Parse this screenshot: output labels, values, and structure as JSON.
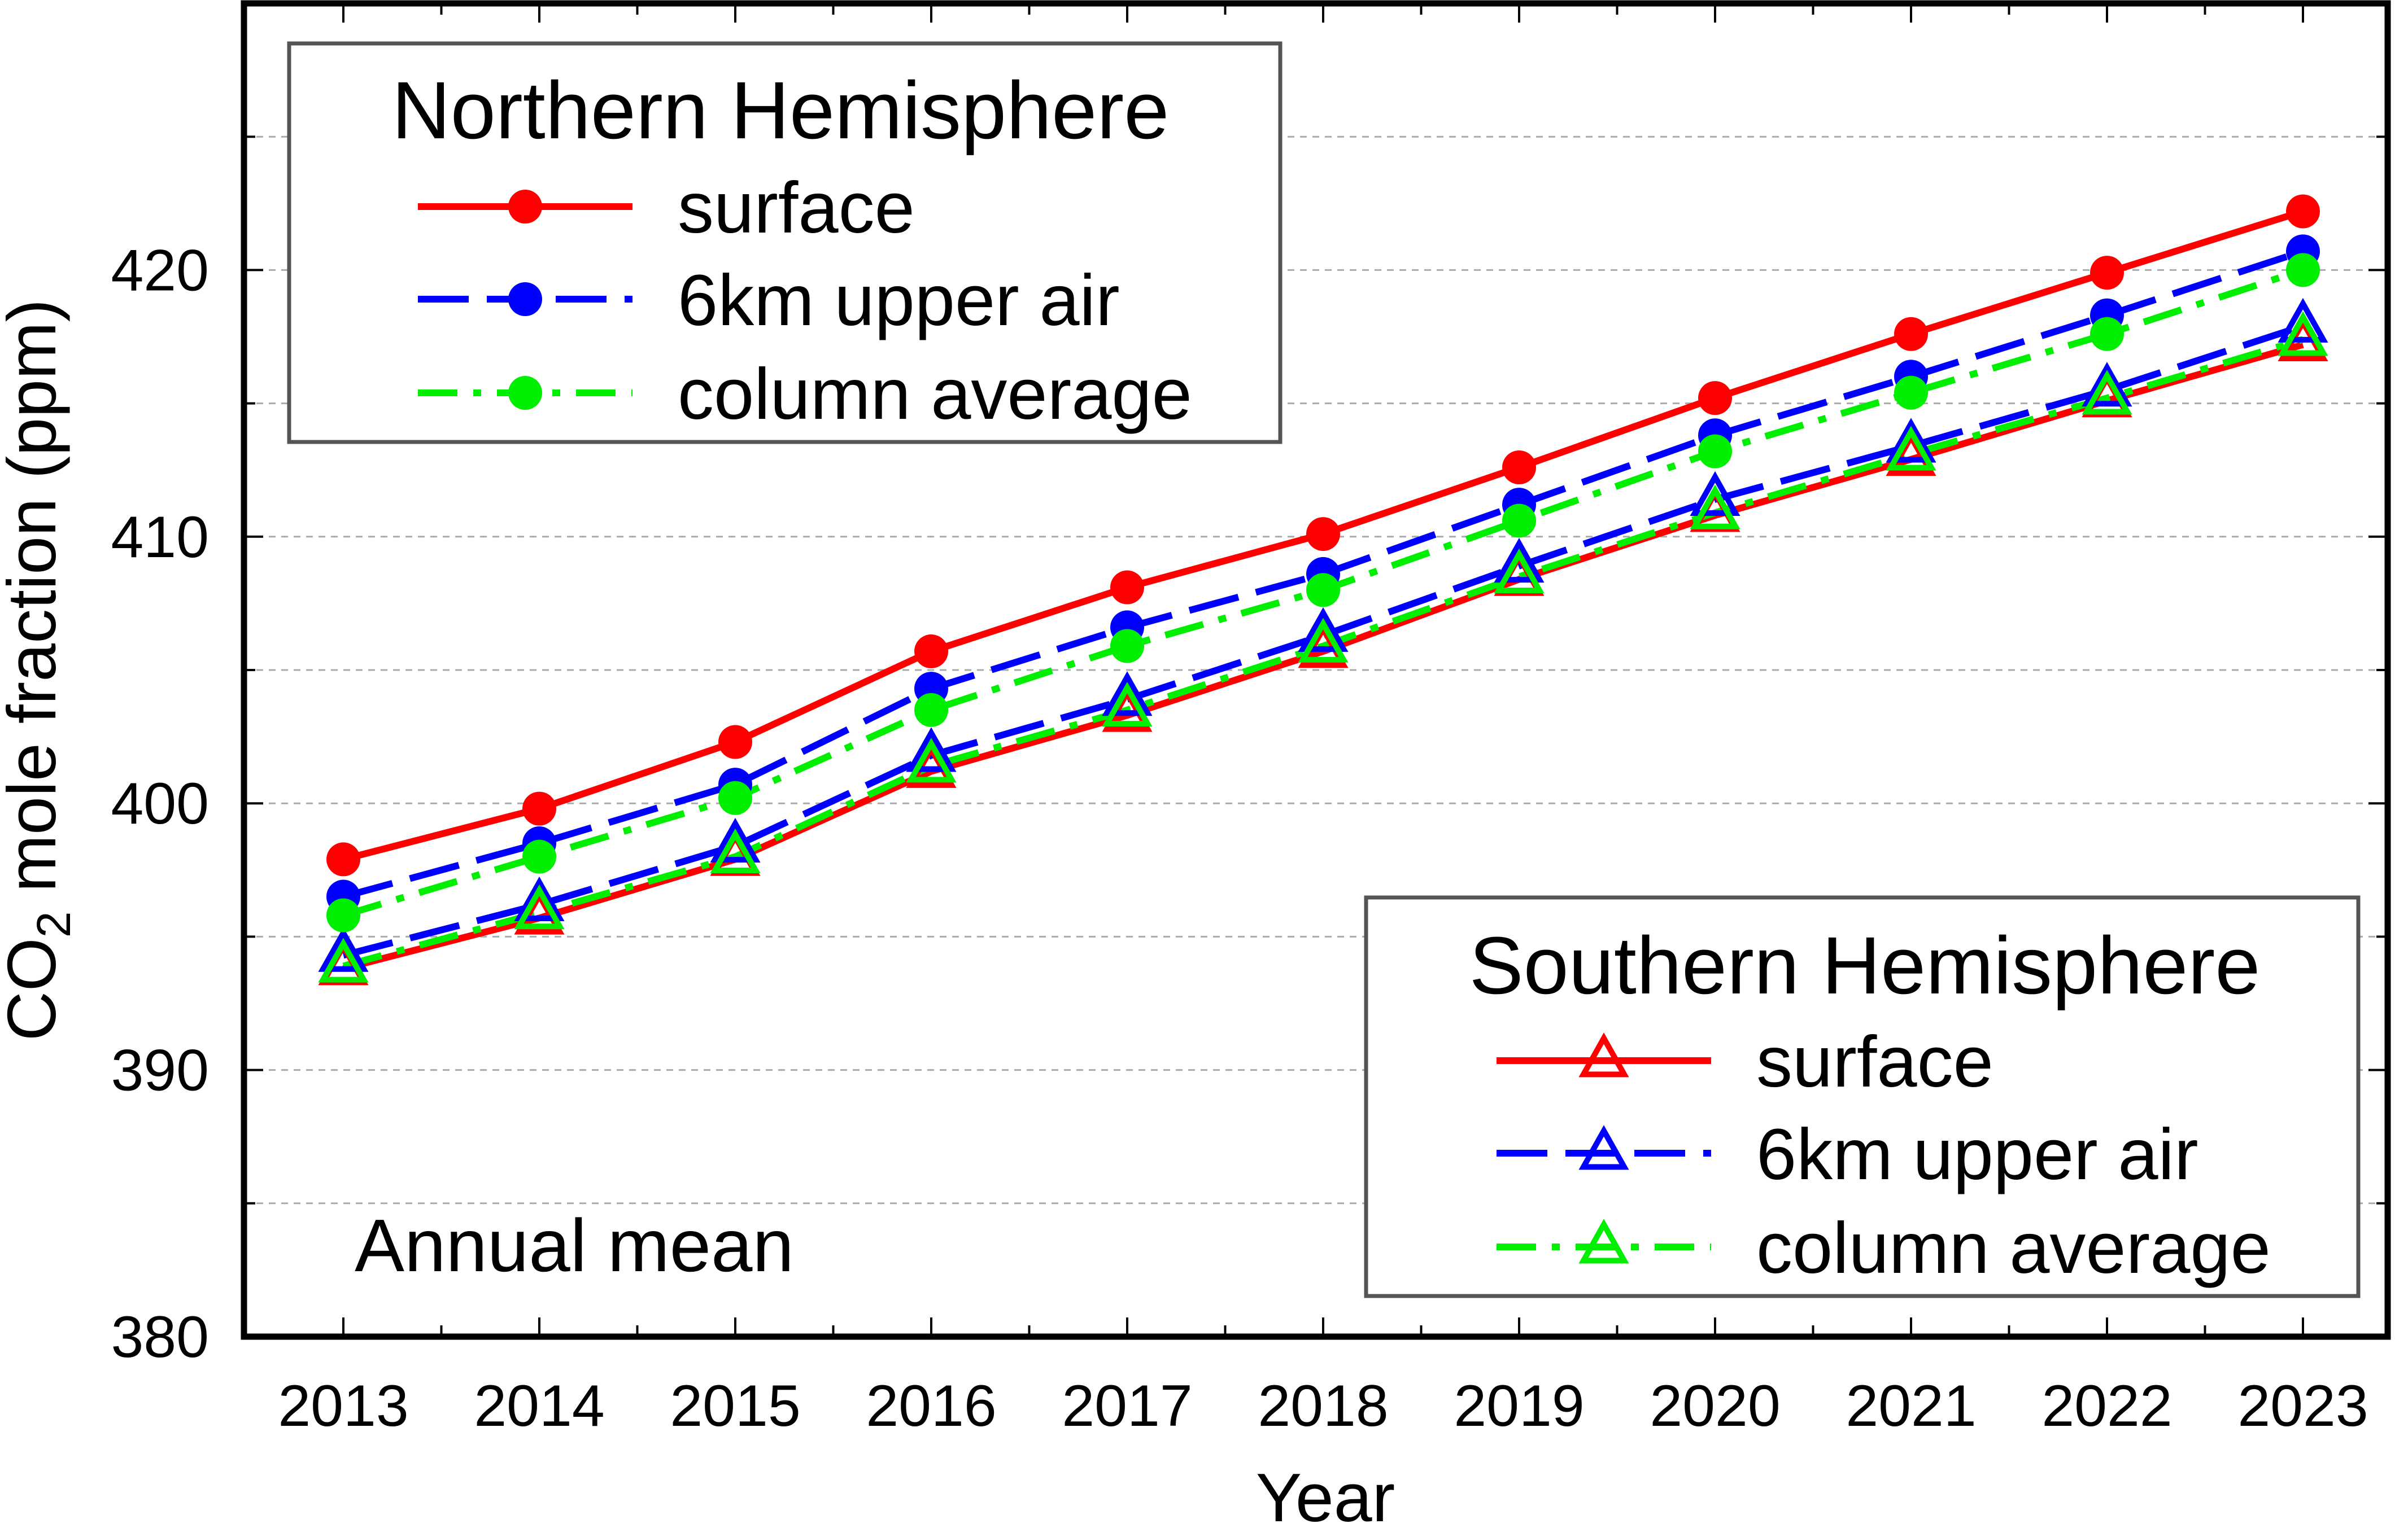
{
  "chart_data": {
    "type": "line",
    "x": [
      2013,
      2014,
      2015,
      2016,
      2017,
      2018,
      2019,
      2020,
      2021,
      2022,
      2023
    ],
    "xlabel": "Year",
    "ylabel_main": "CO",
    "ylabel_sub": "2",
    "ylabel_rest": " mole fraction (ppm)",
    "ylim": [
      380,
      430
    ],
    "yticks": [
      380,
      390,
      400,
      410,
      420
    ],
    "grid": "horizontal dashed",
    "annotation": "Annual mean",
    "legends": [
      {
        "title": "Northern Hemisphere",
        "placement": "top-left",
        "labels": [
          "surface",
          "6km upper air",
          "column average"
        ]
      },
      {
        "title": "Southern Hemisphere",
        "placement": "bottom-right",
        "labels": [
          "surface",
          "6km upper air",
          "column average"
        ]
      }
    ],
    "series": [
      {
        "name": "surface",
        "hemisphere": "Northern Hemisphere",
        "color": "#ff0000",
        "dash": "solid",
        "marker": "filled-circle",
        "values": [
          397.9,
          399.8,
          402.3,
          405.7,
          408.1,
          410.1,
          412.6,
          415.2,
          417.6,
          419.9,
          422.2
        ]
      },
      {
        "name": "6km upper air",
        "hemisphere": "Northern Hemisphere",
        "color": "#0000ff",
        "dash": "long-dash",
        "marker": "filled-circle",
        "values": [
          396.5,
          398.5,
          400.7,
          404.3,
          406.6,
          408.6,
          411.2,
          413.8,
          416.0,
          418.3,
          420.7
        ]
      },
      {
        "name": "column average",
        "hemisphere": "Northern Hemisphere",
        "color": "#00ee00",
        "dash": "dash-dot",
        "marker": "filled-circle",
        "values": [
          395.8,
          398.0,
          400.2,
          403.5,
          405.9,
          408.0,
          410.6,
          413.2,
          415.4,
          417.6,
          420.0
        ]
      },
      {
        "name": "surface",
        "hemisphere": "Southern Hemisphere",
        "color": "#ff0000",
        "dash": "solid",
        "marker": "open-triangle",
        "values": [
          393.8,
          395.7,
          397.9,
          401.2,
          403.3,
          405.7,
          408.4,
          410.8,
          412.9,
          415.1,
          417.2
        ]
      },
      {
        "name": "6km upper air",
        "hemisphere": "Southern Hemisphere",
        "color": "#0000ff",
        "dash": "long-dash",
        "marker": "open-triangle",
        "values": [
          394.3,
          396.2,
          398.4,
          401.8,
          403.9,
          406.3,
          408.9,
          411.4,
          413.4,
          415.5,
          417.9
        ]
      },
      {
        "name": "column average",
        "hemisphere": "Southern Hemisphere",
        "color": "#00ee00",
        "dash": "dash-dot",
        "marker": "open-triangle",
        "values": [
          393.9,
          395.9,
          398.0,
          401.4,
          403.5,
          405.9,
          408.5,
          410.9,
          413.1,
          415.2,
          417.4
        ]
      }
    ]
  }
}
